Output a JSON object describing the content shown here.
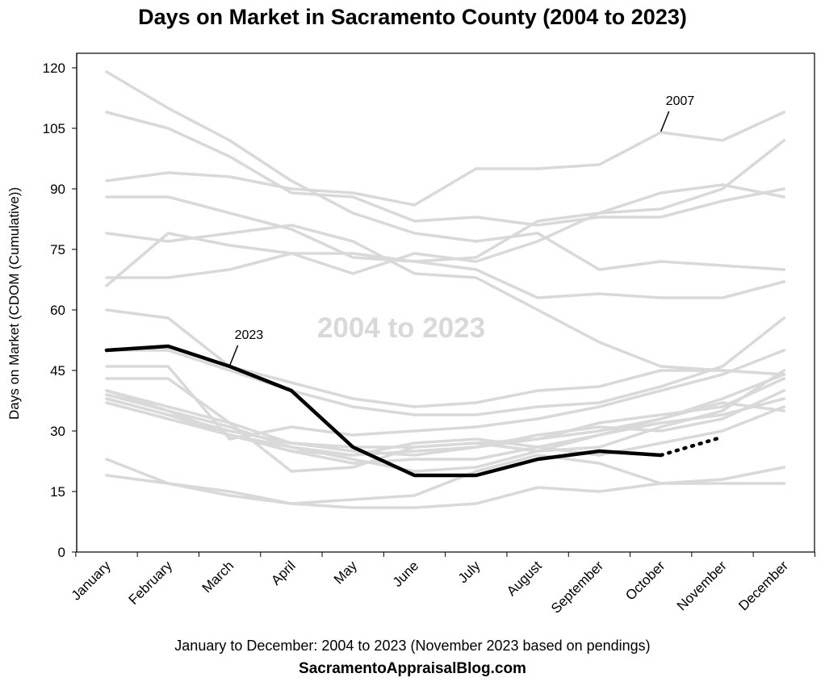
{
  "chart_data": {
    "type": "line",
    "title": "Days on Market in Sacramento County (2004 to 2023)",
    "ylabel": "Days on Market (CDOM (Cumulative))",
    "xlabel": "January to December: 2004 to 2023 (November 2023 based on pendings)",
    "watermark": "2004 to 2023",
    "source": "SacramentoAppraisalBlog.com",
    "ylim": [
      0,
      120
    ],
    "yticks": [
      0,
      15,
      30,
      45,
      60,
      75,
      90,
      105,
      120
    ],
    "grid": false,
    "categories": [
      "January",
      "February",
      "March",
      "April",
      "May",
      "June",
      "July",
      "August",
      "September",
      "October",
      "November",
      "December"
    ],
    "colors": {
      "background_series": "#d9d9d9",
      "highlight_series": "#000000",
      "frame": "#000000"
    },
    "series": [
      {
        "values": [
          119,
          110,
          102,
          92,
          84,
          79,
          77,
          79,
          70,
          72,
          71,
          70
        ]
      },
      {
        "values": [
          109,
          105,
          98,
          89,
          88,
          82,
          83,
          81,
          83,
          83,
          87,
          90
        ]
      },
      {
        "name": "2007",
        "values": [
          92,
          94,
          93,
          90,
          89,
          86,
          95,
          95,
          96,
          104,
          102,
          109
        ]
      },
      {
        "values": [
          88,
          88,
          84,
          80,
          73,
          72,
          70,
          63,
          64,
          63,
          63,
          67
        ]
      },
      {
        "values": [
          79,
          77,
          79,
          81,
          77,
          69,
          68,
          60,
          52,
          46,
          45,
          44
        ]
      },
      {
        "values": [
          68,
          68,
          70,
          74,
          74,
          72,
          73,
          82,
          84,
          89,
          91,
          88
        ]
      },
      {
        "values": [
          66,
          79,
          76,
          74,
          69,
          74,
          72,
          77,
          84,
          85,
          90,
          102
        ]
      },
      {
        "values": [
          60,
          58,
          46,
          42,
          38,
          36,
          37,
          40,
          41,
          45,
          45,
          44
        ]
      },
      {
        "values": [
          50,
          50,
          45,
          40,
          36,
          34,
          34,
          36,
          37,
          41,
          46,
          58
        ]
      },
      {
        "values": [
          46,
          46,
          28,
          31,
          29,
          30,
          31,
          33,
          36,
          40,
          44,
          50
        ]
      },
      {
        "values": [
          43,
          43,
          32,
          20,
          21,
          26,
          27,
          25,
          26,
          31,
          35,
          45
        ]
      },
      {
        "values": [
          40,
          36,
          32,
          27,
          26,
          26,
          27,
          28,
          30,
          33,
          38,
          44
        ]
      },
      {
        "values": [
          39,
          35,
          31,
          26,
          24,
          25,
          26,
          28,
          32,
          34,
          36,
          43
        ]
      },
      {
        "values": [
          38,
          34,
          30,
          27,
          25,
          24,
          26,
          29,
          31,
          30,
          33,
          40
        ]
      },
      {
        "values": [
          37,
          33,
          29,
          25,
          24,
          27,
          28,
          26,
          24,
          27,
          30,
          36
        ]
      },
      {
        "values": [
          40,
          35,
          29,
          26,
          23,
          20,
          21,
          25,
          29,
          32,
          34,
          38
        ]
      },
      {
        "values": [
          38,
          34,
          29,
          25,
          22,
          23,
          23,
          26,
          29,
          33,
          37,
          35
        ]
      },
      {
        "values": [
          23,
          17,
          14,
          12,
          13,
          14,
          20,
          24,
          22,
          17,
          17,
          17
        ]
      },
      {
        "values": [
          19,
          17,
          15,
          12,
          11,
          11,
          12,
          16,
          15,
          17,
          18,
          21
        ]
      },
      {
        "name": "2023",
        "highlight": true,
        "values": [
          50,
          51,
          46,
          40,
          26,
          19,
          19,
          23,
          25,
          24,
          28.5,
          null
        ],
        "dotted_from_index": 9
      }
    ],
    "annotations": [
      {
        "text": "2007",
        "series": "2007",
        "point_index": 9
      },
      {
        "text": "2023",
        "series": "2023",
        "point_index": 2
      }
    ]
  }
}
